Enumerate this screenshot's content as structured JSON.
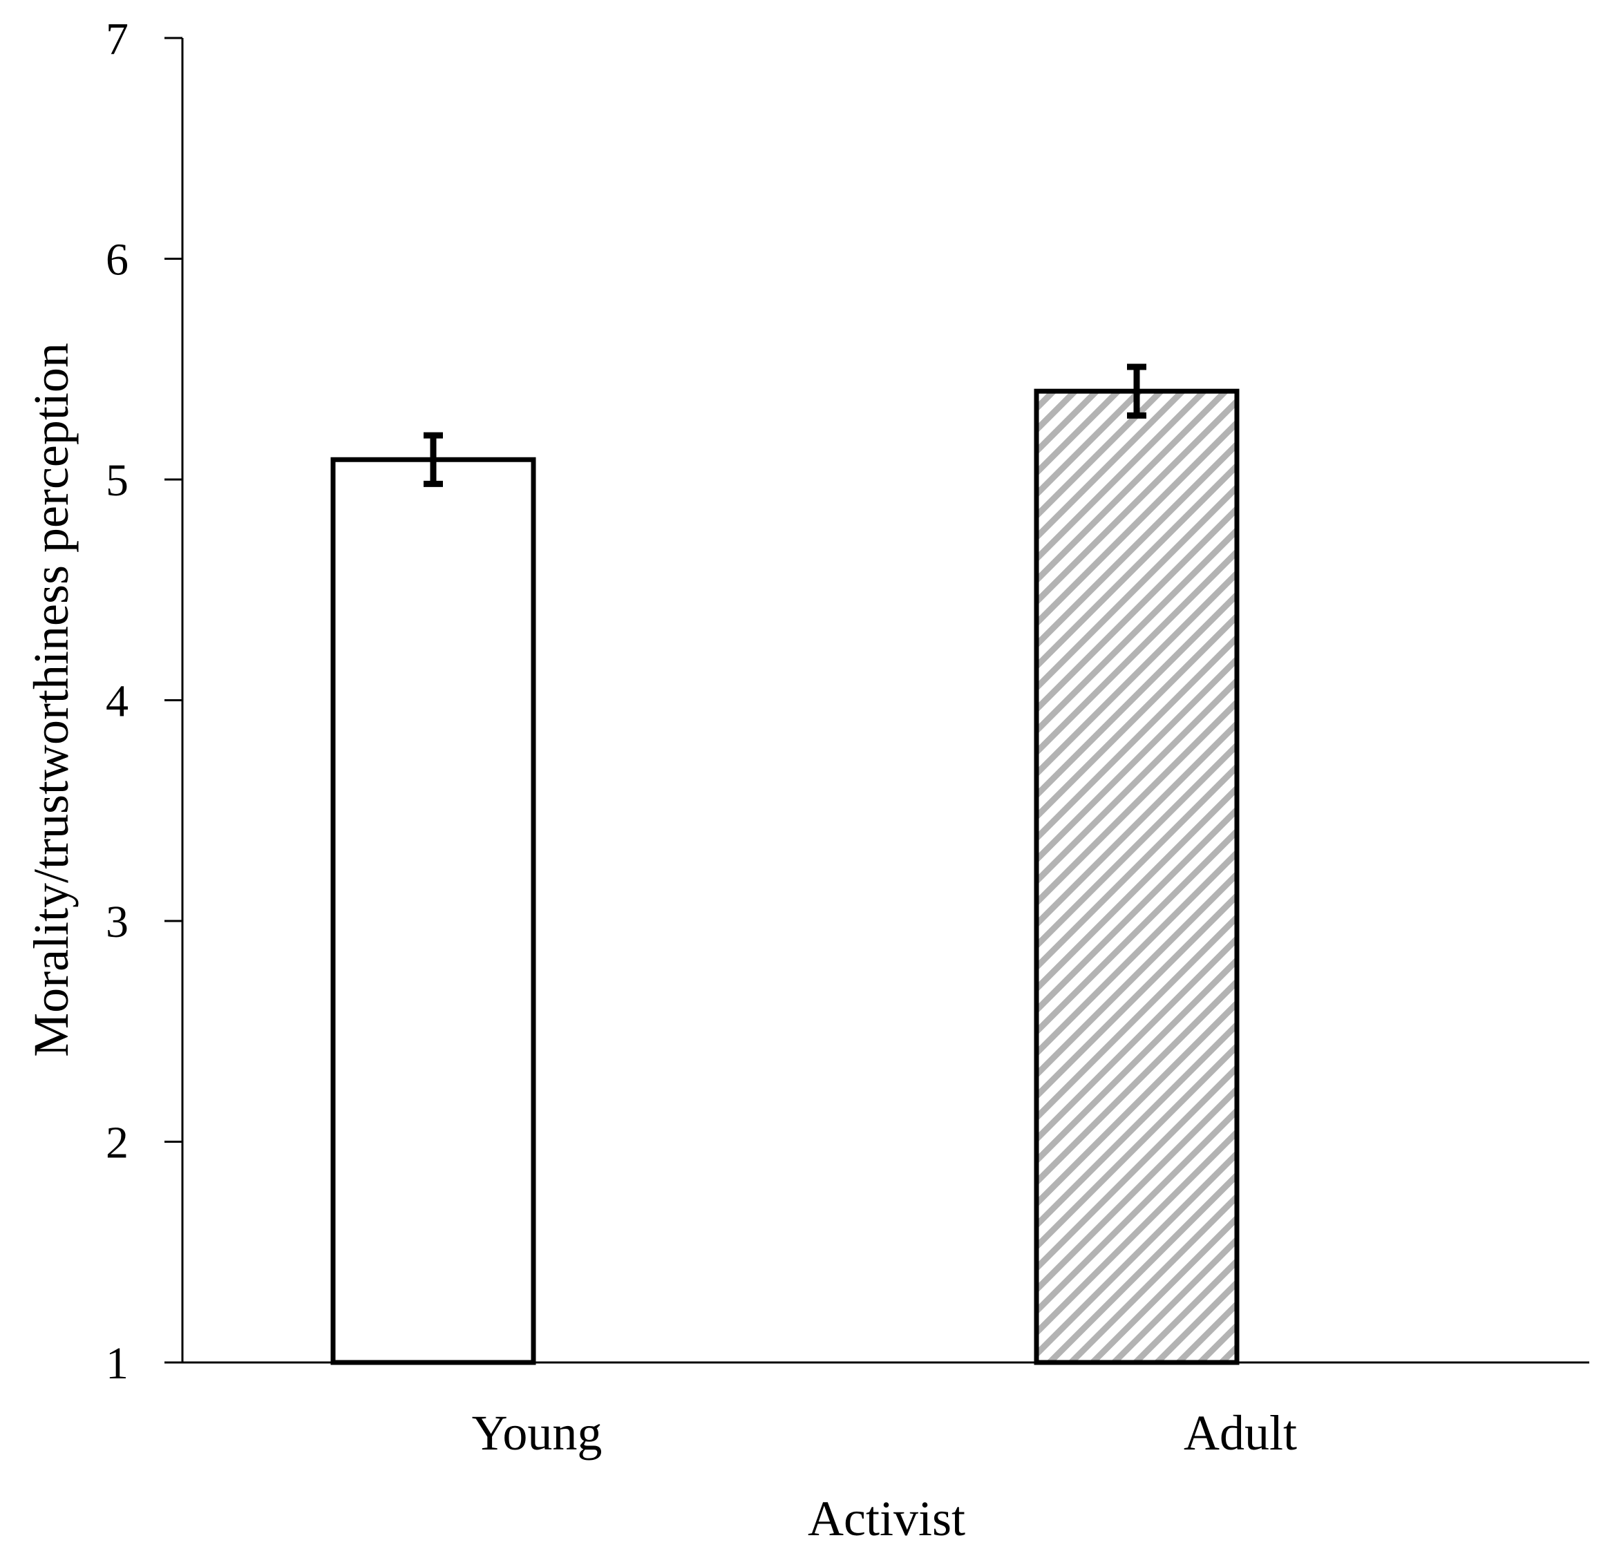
{
  "chart_data": {
    "type": "bar",
    "title": "",
    "xlabel": "Activist",
    "ylabel": "Morality/trustworthiness perception",
    "categories": [
      "Young",
      "Adult"
    ],
    "values": [
      5.09,
      5.4
    ],
    "error": [
      0.11,
      0.11
    ],
    "ylim": [
      1,
      7
    ],
    "yticks": [
      "1",
      "2",
      "3",
      "4",
      "5",
      "6",
      "7"
    ],
    "bar_fills": [
      "solid-white",
      "diagonal-hatch-gray"
    ],
    "grid": false,
    "legend": "none"
  },
  "colors": {
    "outline": "#000000",
    "bar_fill": "#ffffff",
    "hatch": "#b3b3b3"
  }
}
